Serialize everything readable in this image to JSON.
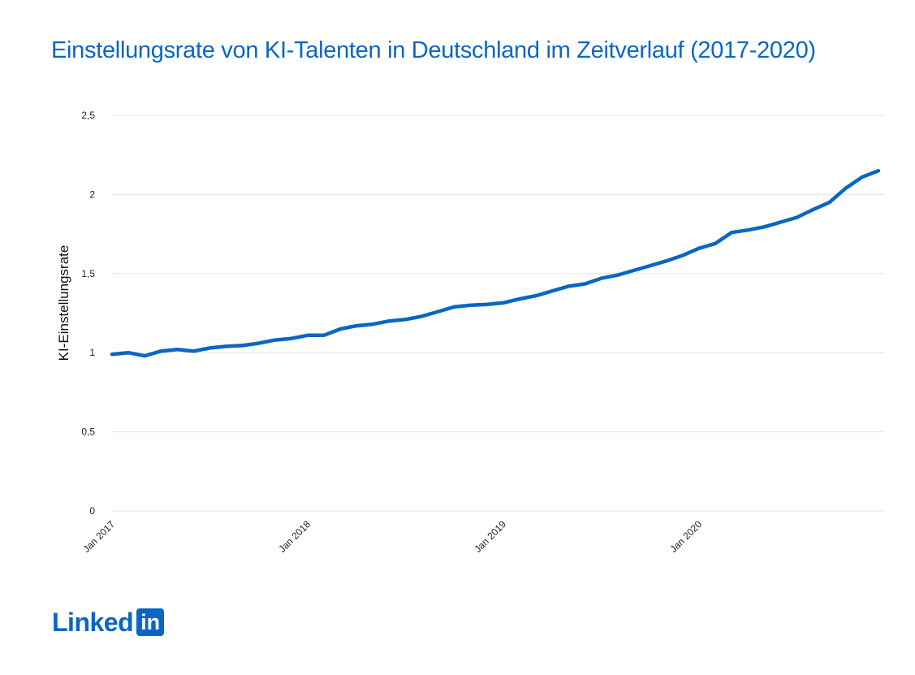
{
  "chart_data": {
    "type": "line",
    "title": "Einstellungsrate von KI-Talenten in Deutschland im Zeitverlauf (2017-2020)",
    "ylabel": "KI-Einstellungsrate",
    "xlabel": "",
    "ylim": [
      0,
      2.5
    ],
    "yticks": [
      "0",
      "0,5",
      "1",
      "1,5",
      "2",
      "2,5"
    ],
    "xticks": [
      "Jan 2017",
      "Jan 2018",
      "Jan 2019",
      "Jan 2020"
    ],
    "grid": true,
    "color": "#0a66c2",
    "x": [
      "Jan 2017",
      "Feb 2017",
      "Mar 2017",
      "Apr 2017",
      "May 2017",
      "Jun 2017",
      "Jul 2017",
      "Aug 2017",
      "Sep 2017",
      "Oct 2017",
      "Nov 2017",
      "Dec 2017",
      "Jan 2018",
      "Feb 2018",
      "Mar 2018",
      "Apr 2018",
      "May 2018",
      "Jun 2018",
      "Jul 2018",
      "Aug 2018",
      "Sep 2018",
      "Oct 2018",
      "Nov 2018",
      "Dec 2018",
      "Jan 2019",
      "Feb 2019",
      "Mar 2019",
      "Apr 2019",
      "May 2019",
      "Jun 2019",
      "Jul 2019",
      "Aug 2019",
      "Sep 2019",
      "Oct 2019",
      "Nov 2019",
      "Dec 2019",
      "Jan 2020",
      "Feb 2020",
      "Mar 2020",
      "Apr 2020",
      "May 2020",
      "Jun 2020",
      "Jul 2020",
      "Aug 2020",
      "Sep 2020",
      "Oct 2020",
      "Nov 2020",
      "Dec 2020"
    ],
    "values": [
      0.99,
      1.0,
      0.98,
      1.01,
      1.02,
      1.01,
      1.03,
      1.04,
      1.045,
      1.06,
      1.08,
      1.09,
      1.11,
      1.11,
      1.15,
      1.17,
      1.18,
      1.2,
      1.21,
      1.23,
      1.26,
      1.29,
      1.3,
      1.305,
      1.315,
      1.34,
      1.36,
      1.39,
      1.42,
      1.435,
      1.47,
      1.49,
      1.52,
      1.55,
      1.58,
      1.615,
      1.66,
      1.69,
      1.76,
      1.775,
      1.795,
      1.825,
      1.855,
      1.905,
      1.95,
      2.04,
      2.11,
      2.15
    ]
  },
  "brand": {
    "word": "Linked",
    "box": "in"
  }
}
